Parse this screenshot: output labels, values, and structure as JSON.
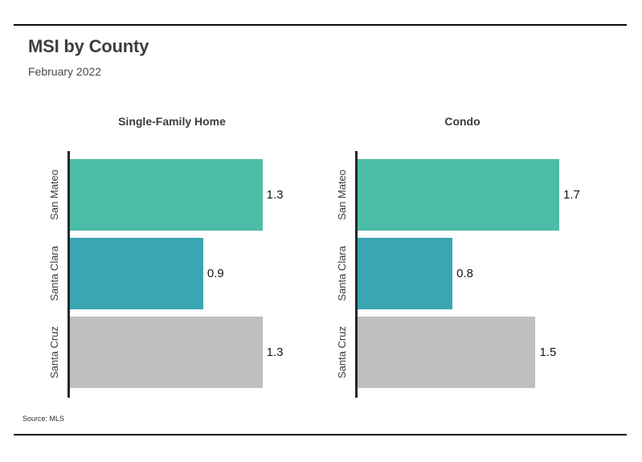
{
  "header": {
    "title": "MSI by County",
    "subtitle": "February 2022"
  },
  "footer": {
    "source": "Source: MLS"
  },
  "palette": {
    "bar_colors": [
      "#4dbca7",
      "#3aa6b2",
      "#bfbfbf"
    ],
    "axis_color": "#262626",
    "rule_color": "#0a0a0a"
  },
  "chart_data": [
    {
      "type": "bar",
      "orientation": "horizontal",
      "title": "Single-Family Home",
      "categories": [
        "San Mateo",
        "Santa Clara",
        "Santa Cruz"
      ],
      "values": [
        1.3,
        0.9,
        1.3
      ],
      "value_labels": [
        "1.3",
        "0.9",
        "1.3"
      ],
      "xlim": [
        0,
        1.66
      ],
      "grid": false,
      "legend": false
    },
    {
      "type": "bar",
      "orientation": "horizontal",
      "title": "Condo",
      "categories": [
        "San Mateo",
        "Santa Clara",
        "Santa Cruz"
      ],
      "values": [
        1.7,
        0.8,
        1.5
      ],
      "value_labels": [
        "1.7",
        "0.8",
        "1.5"
      ],
      "xlim": [
        0,
        2.12
      ],
      "grid": false,
      "legend": false
    }
  ]
}
